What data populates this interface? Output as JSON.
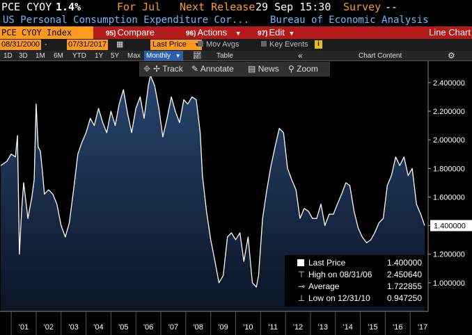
{
  "header": {
    "ticker": "PCE CYOY",
    "value": "1.4%",
    "period": "For Jul",
    "next_release_label": "Next Release",
    "next_release_value": "29 Sep 15:30",
    "survey_label": "Survey",
    "survey_value": "--",
    "description": "US Personal Consumption Expenditure Cor...",
    "source": "Bureau of Economic Analysis"
  },
  "toolbar": {
    "security": "PCE CYOY Index",
    "compare_num": "95)",
    "compare": "Compare",
    "actions_num": "96)",
    "actions": "Actions",
    "edit_num": "97)",
    "edit": "Edit",
    "chart_type": "Line Chart"
  },
  "controls": {
    "start_date": "08/31/2000",
    "end_date": "07/31/2017",
    "field": "Last Price",
    "mov_avgs": "Mov Avgs",
    "key_events": "Key Events"
  },
  "ranges": {
    "items": [
      "1D",
      "3D",
      "1M",
      "6M",
      "YTD",
      "1Y",
      "5Y",
      "Max"
    ],
    "frequency": "Monthly",
    "table": "Table",
    "chart_content": "Chart Content"
  },
  "tools": {
    "track": "Track",
    "annotate": "Annotate",
    "news": "News",
    "zoom": "Zoom"
  },
  "legend": {
    "last_label": "Last Price",
    "last_value": "1.400000",
    "high_label": "High on 08/31/06",
    "high_value": "2.450640",
    "avg_label": "Average",
    "avg_value": "1.722855",
    "low_label": "Low on 12/31/10",
    "low_value": "0.947250"
  },
  "chart_data": {
    "type": "area",
    "title": "PCE CYOY Index",
    "xlabel": "",
    "ylabel": "",
    "x_ticks": [
      "'01",
      "'02",
      "'03",
      "'04",
      "'05",
      "'06",
      "'07",
      "'08",
      "'09",
      "'10",
      "'11",
      "'12",
      "'13",
      "'14",
      "'15",
      "'16",
      "'17"
    ],
    "y_ticks": [
      "1.000000",
      "1.200000",
      "1.400000",
      "1.600000",
      "1.800000",
      "2.000000",
      "2.200000",
      "2.400000"
    ],
    "ylim": [
      0.8,
      2.55
    ],
    "last_price_label": "1.400000",
    "grid": false,
    "colors": {
      "line": "#ffffff",
      "area_top": "#28456e",
      "area_bottom": "#0a1424",
      "last_tag": "#ffffff"
    },
    "series": [
      {
        "name": "Last Price",
        "x": [
          2000.58,
          2000.83,
          2001.0,
          2001.17,
          2001.25,
          2001.33,
          2001.42,
          2001.5,
          2001.67,
          2001.83,
          2001.92,
          2002.0,
          2002.08,
          2002.17,
          2002.25,
          2002.33,
          2002.5,
          2002.67,
          2002.83,
          2003.0,
          2003.17,
          2003.33,
          2003.5,
          2003.67,
          2003.83,
          2004.0,
          2004.17,
          2004.33,
          2004.5,
          2004.67,
          2004.83,
          2005.0,
          2005.17,
          2005.33,
          2005.5,
          2005.67,
          2005.83,
          2006.0,
          2006.17,
          2006.33,
          2006.5,
          2006.58,
          2006.75,
          2006.92,
          2007.08,
          2007.25,
          2007.42,
          2007.58,
          2007.75,
          2007.92,
          2008.08,
          2008.25,
          2008.42,
          2008.58,
          2008.67,
          2008.83,
          2009.0,
          2009.17,
          2009.33,
          2009.5,
          2009.67,
          2009.83,
          2010.0,
          2010.17,
          2010.33,
          2010.5,
          2010.67,
          2010.83,
          2010.92,
          2011.08,
          2011.25,
          2011.42,
          2011.58,
          2011.75,
          2011.92,
          2012.08,
          2012.25,
          2012.42,
          2012.58,
          2012.75,
          2012.92,
          2013.08,
          2013.25,
          2013.42,
          2013.58,
          2013.75,
          2013.92,
          2014.08,
          2014.25,
          2014.42,
          2014.58,
          2014.75,
          2014.92,
          2015.08,
          2015.25,
          2015.42,
          2015.58,
          2015.75,
          2015.92,
          2016.08,
          2016.25,
          2016.42,
          2016.58,
          2016.75,
          2016.92,
          2017.08,
          2017.25,
          2017.42,
          2017.58
        ],
        "values": [
          1.82,
          1.85,
          1.9,
          1.88,
          2.03,
          1.2,
          1.52,
          1.7,
          1.45,
          1.6,
          1.72,
          2.25,
          1.95,
          1.92,
          1.78,
          1.62,
          1.65,
          1.62,
          1.55,
          1.4,
          1.32,
          1.42,
          1.65,
          1.9,
          1.98,
          2.05,
          2.15,
          2.1,
          2.22,
          2.12,
          2.05,
          2.2,
          2.1,
          2.25,
          2.35,
          2.18,
          2.05,
          2.22,
          2.3,
          2.15,
          2.38,
          2.45,
          2.38,
          2.22,
          2.02,
          2.15,
          2.3,
          2.2,
          2.12,
          2.28,
          2.25,
          2.3,
          2.28,
          2.05,
          1.75,
          1.5,
          1.3,
          1.15,
          1.0,
          1.05,
          1.32,
          1.35,
          1.3,
          1.35,
          1.15,
          1.32,
          1.0,
          0.97,
          1.05,
          1.45,
          1.65,
          1.82,
          1.95,
          2.08,
          2.05,
          1.8,
          1.72,
          1.65,
          1.45,
          1.52,
          1.5,
          1.45,
          1.45,
          1.55,
          1.4,
          1.48,
          1.48,
          1.55,
          1.62,
          1.7,
          1.68,
          1.5,
          1.38,
          1.32,
          1.28,
          1.3,
          1.35,
          1.42,
          1.45,
          1.68,
          1.75,
          1.88,
          1.82,
          1.88,
          1.75,
          1.8,
          1.55,
          1.48,
          1.4
        ]
      }
    ]
  }
}
